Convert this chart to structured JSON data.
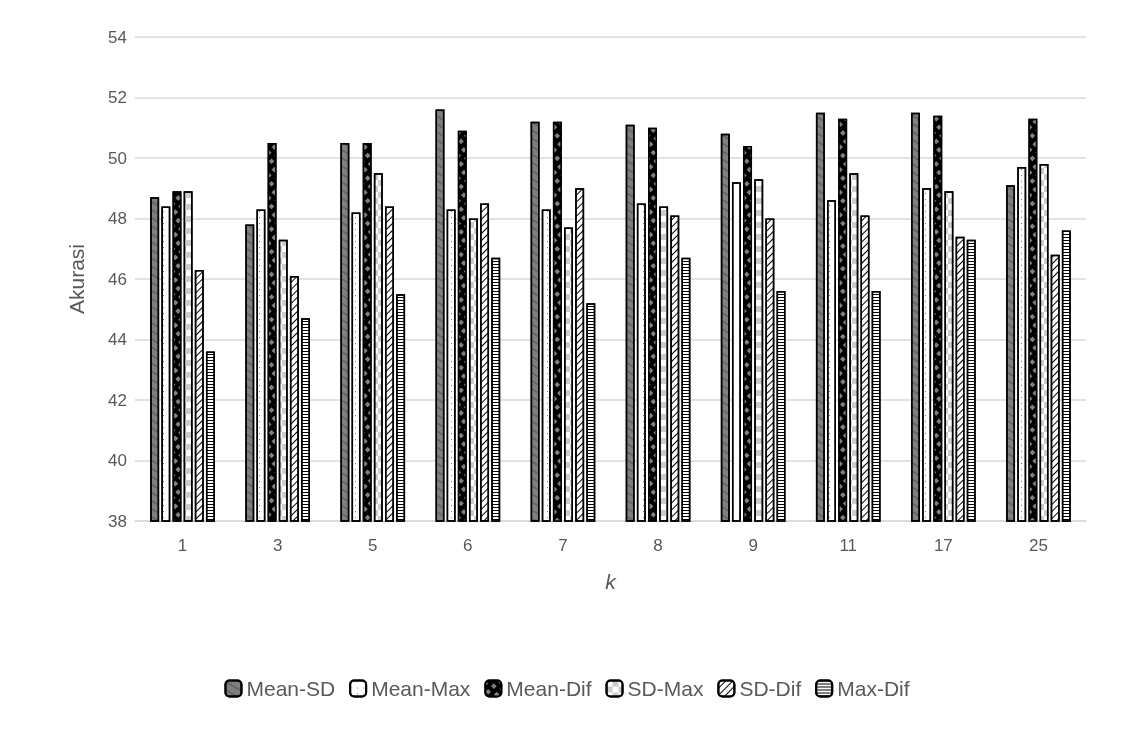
{
  "chart_data": {
    "type": "bar",
    "xlabel": "k",
    "ylabel": "Akurasi",
    "categories": [
      "1",
      "3",
      "5",
      "6",
      "7",
      "8",
      "9",
      "11",
      "17",
      "25"
    ],
    "series": [
      {
        "name": "Mean-SD",
        "color": "#808080",
        "values": [
          48.7,
          47.8,
          50.5,
          51.6,
          51.2,
          51.1,
          50.8,
          51.5,
          51.5,
          49.1
        ]
      },
      {
        "name": "Mean-Max",
        "color": "#ffffff",
        "values": [
          48.4,
          48.3,
          48.2,
          48.3,
          48.3,
          48.5,
          49.2,
          48.6,
          49.0,
          49.7
        ]
      },
      {
        "name": "Mean-Dif",
        "color": "#000000",
        "values": [
          48.9,
          50.5,
          50.5,
          50.9,
          51.2,
          51.0,
          50.4,
          51.3,
          51.4,
          51.3
        ]
      },
      {
        "name": "SD-Max",
        "color": "#ffffff",
        "values": [
          48.9,
          47.3,
          49.5,
          48.0,
          47.7,
          48.4,
          49.3,
          49.5,
          48.9,
          49.8
        ]
      },
      {
        "name": "SD-Dif",
        "color": "#ffffff",
        "values": [
          46.3,
          46.1,
          48.4,
          48.5,
          49.0,
          48.1,
          48.0,
          48.1,
          47.4,
          46.8
        ]
      },
      {
        "name": "Max-Dif",
        "color": "#ffffff",
        "values": [
          43.6,
          44.7,
          45.5,
          46.7,
          45.2,
          46.7,
          45.6,
          45.6,
          47.3,
          47.6
        ]
      }
    ],
    "ylim": [
      38,
      54
    ],
    "yticks": [
      38,
      40,
      42,
      44,
      46,
      48,
      50,
      52,
      54
    ],
    "grid": "y",
    "legend": "bottom"
  }
}
